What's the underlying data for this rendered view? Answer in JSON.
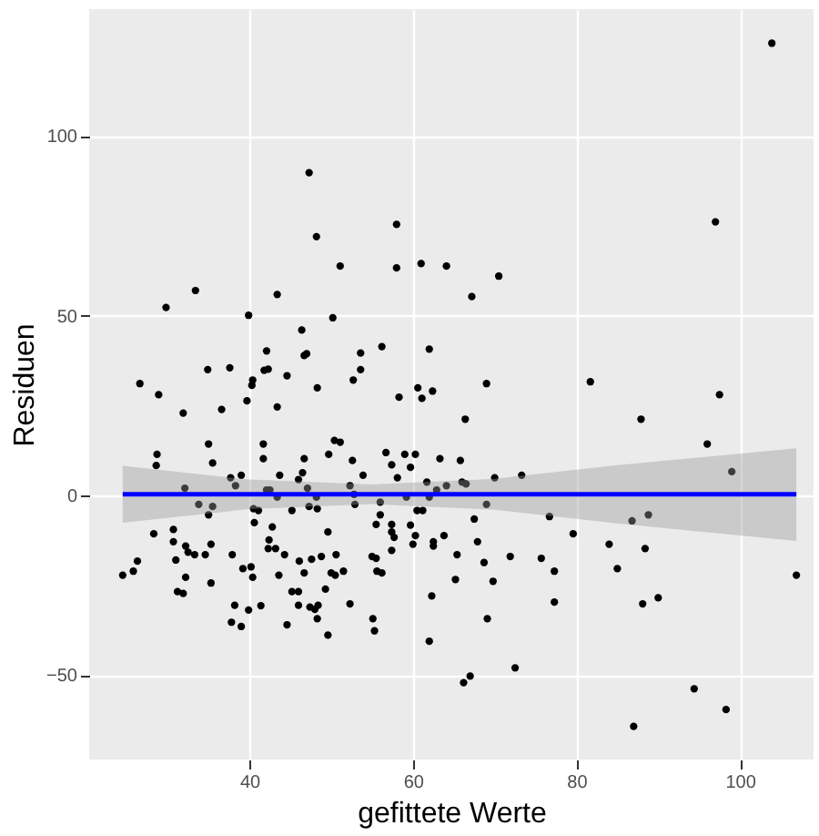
{
  "chart_data": {
    "type": "scatter",
    "xlabel": "gefittete Werte",
    "ylabel": "Residuen",
    "xlim": [
      20.4,
      109
    ],
    "ylim": [
      -73.5,
      135.3
    ],
    "xticks": [
      40,
      60,
      80,
      100
    ],
    "yticks": [
      -50,
      0,
      50,
      100
    ],
    "grid": true,
    "series": [
      {
        "color": "#000000",
        "marker": "circle",
        "x": [
          103.9,
          47.3,
          48.2,
          58.0,
          97.0,
          58.0,
          61.0,
          64.1,
          51.1,
          70.5,
          33.4,
          43.4,
          29.8,
          67.2,
          39.9,
          50.2,
          46.4,
          42.1,
          46.7,
          47.0,
          56.2,
          53.6,
          62.0,
          53.6,
          41.8,
          42.3,
          34.9,
          37.6,
          44.6,
          40.4,
          40.3,
          52.7,
          48.3,
          26.6,
          69.0,
          81.7,
          60.6,
          62.4,
          58.3,
          61.1,
          28.9,
          97.5,
          43.4,
          36.6,
          31.9,
          39.7,
          66.4,
          87.9,
          96.0,
          35.0,
          41.7,
          50.4,
          51.1,
          28.7,
          28.6,
          35.5,
          41.7,
          46.7,
          49.7,
          52.6,
          56.7,
          59.0,
          60.3,
          63.3,
          65.8,
          57.4,
          59.7,
          99.0,
          73.3,
          70.0,
          43.7,
          39.0,
          37.7,
          46.5,
          46.0,
          53.9,
          58.1,
          61.7,
          66.0,
          66.5,
          38.3,
          32.1,
          52.3,
          64.1,
          47.1,
          42.1,
          42.5,
          62.9,
          52.8,
          43.4,
          48.2,
          59.2,
          62.0,
          33.8,
          35.5,
          52.9,
          56.0,
          69.0,
          47.3,
          40.5,
          41.1,
          48.3,
          45.2,
          60.5,
          61.2,
          35.0,
          56.0,
          88.8,
          76.7,
          86.8,
          40.6,
          55.5,
          57.4,
          59.7,
          42.8,
          30.7,
          28.3,
          49.6,
          57.4,
          67.5,
          79.6,
          63.8,
          57.7,
          60.3,
          30.7,
          42.4,
          62.5,
          67.9,
          60.0,
          62.5,
          84.0,
          32.2,
          35.3,
          42.3,
          43.2,
          57.4,
          88.4,
          32.5,
          33.3,
          34.6,
          37.9,
          44.3,
          50.6,
          55.0,
          71.9,
          65.4,
          75.7,
          31.0,
          26.3,
          46.1,
          47.6,
          48.8,
          55.5,
          68.7,
          85.0,
          39.2,
          40.2,
          25.8,
          24.5,
          32.2,
          40.4,
          43.6,
          46.7,
          50.0,
          50.5,
          51.5,
          55.6,
          56.2,
          77.3,
          106.9,
          65.2,
          69.8,
          35.3,
          45.2,
          46.0,
          49.3,
          31.2,
          31.9,
          62.3,
          90.0,
          38.2,
          46.0,
          48.4,
          52.3,
          88.1,
          77.3,
          41.4,
          47.4,
          48.0,
          39.9,
          55.1,
          48.3,
          69.1,
          37.8,
          44.6,
          39.0,
          55.3,
          49.6,
          62.0,
          72.5,
          67.0,
          66.2,
          94.4,
          98.3,
          87.0
        ],
        "values": [
          125.8,
          89.8,
          72.0,
          75.4,
          76.1,
          63.3,
          64.5,
          63.8,
          63.8,
          61.0,
          57.0,
          55.9,
          52.3,
          55.3,
          50.1,
          49.4,
          46.0,
          40.2,
          38.9,
          39.4,
          41.4,
          39.6,
          40.7,
          35.0,
          34.8,
          35.1,
          35.0,
          35.5,
          33.3,
          32.1,
          30.6,
          32.1,
          29.9,
          31.1,
          31.1,
          31.6,
          29.9,
          29.0,
          27.3,
          27.0,
          28.0,
          28.0,
          24.6,
          23.9,
          22.9,
          26.3,
          21.2,
          21.2,
          14.3,
          14.3,
          14.3,
          15.3,
          14.8,
          11.4,
          8.3,
          9.0,
          10.2,
          10.2,
          11.4,
          9.7,
          11.9,
          11.4,
          11.4,
          10.2,
          9.7,
          8.5,
          7.8,
          6.6,
          5.6,
          4.9,
          5.6,
          5.6,
          4.9,
          6.3,
          4.4,
          5.6,
          4.9,
          3.7,
          3.7,
          3.2,
          2.7,
          2.0,
          2.7,
          2.7,
          2.0,
          1.5,
          1.5,
          1.5,
          0.3,
          -0.5,
          -0.5,
          -0.5,
          -0.5,
          -2.5,
          -3.1,
          -2.5,
          -1.9,
          -2.5,
          -3.1,
          -3.7,
          -4.2,
          -3.7,
          -4.2,
          -4.2,
          -4.2,
          -5.4,
          -5.4,
          -5.4,
          -5.9,
          -7.1,
          -7.6,
          -8.1,
          -8.1,
          -8.3,
          -8.8,
          -9.5,
          -10.7,
          -10.2,
          -10.2,
          -6.6,
          -10.7,
          -11.2,
          -11.7,
          -11.2,
          -12.9,
          -12.4,
          -12.9,
          -12.9,
          -13.6,
          -14.1,
          -13.6,
          -14.1,
          -13.6,
          -14.8,
          -14.8,
          -15.3,
          -14.8,
          -15.8,
          -16.5,
          -16.5,
          -16.5,
          -16.5,
          -16.5,
          -17.0,
          -17.0,
          -16.5,
          -17.5,
          -18.0,
          -18.3,
          -18.3,
          -17.8,
          -17.0,
          -17.5,
          -18.7,
          -20.4,
          -20.4,
          -19.9,
          -21.1,
          -22.2,
          -22.8,
          -22.8,
          -22.2,
          -21.6,
          -21.6,
          -22.2,
          -21.1,
          -21.1,
          -21.6,
          -21.1,
          -22.2,
          -23.4,
          -23.9,
          -24.4,
          -26.8,
          -26.8,
          -26.1,
          -26.8,
          -27.3,
          -28.0,
          -28.5,
          -30.6,
          -30.6,
          -30.6,
          -30.2,
          -30.2,
          -29.7,
          -30.7,
          -31.1,
          -31.7,
          -31.9,
          -34.3,
          -34.3,
          -34.3,
          -35.3,
          -36.0,
          -36.5,
          -37.7,
          -38.9,
          -40.6,
          -48.0,
          -50.3,
          -52.1,
          -53.8,
          -59.6,
          -64.3
        ]
      },
      {
        "type": "line",
        "marker": "none",
        "color": "#0000ff",
        "x": [
          24.5,
          40,
          55,
          70,
          85,
          106.9
        ],
        "values": [
          0.3,
          0.3,
          0.3,
          0.3,
          0.3,
          0.3
        ],
        "lower": [
          -7.6,
          -3.8,
          -2.4,
          -4.0,
          -7.8,
          -12.7
        ],
        "upper": [
          8.2,
          4.4,
          3.0,
          4.6,
          8.4,
          13.1
        ]
      }
    ]
  }
}
